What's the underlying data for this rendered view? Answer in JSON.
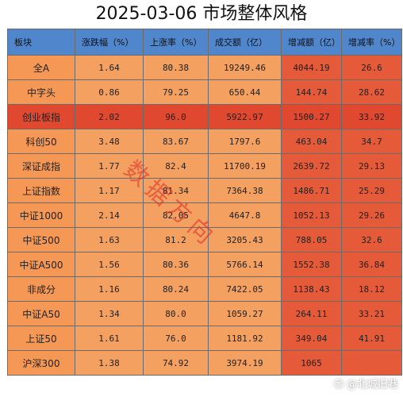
{
  "title": "2025-03-06 市场整体风格",
  "table": {
    "headers": [
      "板块",
      "涨跌幅（%）",
      "上涨率（%）",
      "成交额（亿）",
      "增减额（亿）",
      "增减率（%）"
    ],
    "rows": [
      [
        "全A",
        "1.64",
        "80.38",
        "19249.46",
        "4044.19",
        "26.6"
      ],
      [
        "中字头",
        "0.86",
        "79.25",
        "650.44",
        "144.74",
        "28.62"
      ],
      [
        "创业板指",
        "2.02",
        "96.0",
        "5922.97",
        "1500.27",
        "33.92"
      ],
      [
        "科创50",
        "3.48",
        "83.67",
        "1797.6",
        "463.04",
        "34.7"
      ],
      [
        "深证成指",
        "1.77",
        "82.4",
        "11700.19",
        "2639.72",
        "29.13"
      ],
      [
        "上证指数",
        "1.17",
        "81.34",
        "7364.38",
        "1486.71",
        "25.29"
      ],
      [
        "中证1000",
        "2.14",
        "82.05",
        "4647.8",
        "1052.13",
        "29.26"
      ],
      [
        "中证500",
        "1.63",
        "81.2",
        "3205.43",
        "788.05",
        "32.6"
      ],
      [
        "中证A500",
        "1.56",
        "80.36",
        "5766.14",
        "1552.38",
        "36.84"
      ],
      [
        "非成分",
        "1.16",
        "80.24",
        "7422.05",
        "1138.43",
        "18.12"
      ],
      [
        "中证A50",
        "1.34",
        "80.0",
        "1059.27",
        "264.11",
        "33.21"
      ],
      [
        "上证50",
        "1.61",
        "76.0",
        "1181.92",
        "349.04",
        "41.91"
      ],
      [
        "沪深300",
        "1.38",
        "74.92",
        "3974.19",
        "1065",
        ""
      ]
    ],
    "highlight_row": 2
  },
  "watermark": "数据方向",
  "corner_watermark": "@北城旧巷",
  "colors": {
    "header_bg": "#4f86cc",
    "orange_cell": "#f59855",
    "red_cell": "#e55a38",
    "highlight_row": "#e0492f"
  }
}
